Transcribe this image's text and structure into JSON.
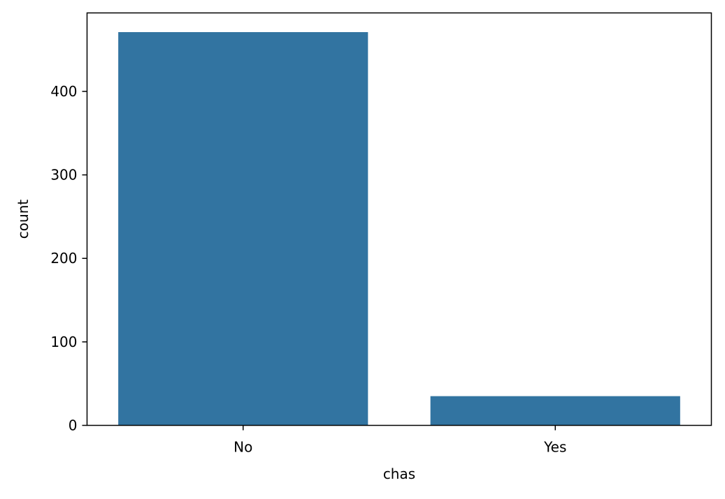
{
  "chart_data": {
    "type": "bar",
    "title": "",
    "xlabel": "chas",
    "ylabel": "count",
    "categories": [
      "No",
      "Yes"
    ],
    "values": [
      471,
      35
    ],
    "ylim": [
      0,
      494
    ],
    "yticks": [
      0,
      100,
      200,
      300,
      400
    ],
    "grid": false,
    "bar_color": "#3274a1",
    "axis_color": "#000000",
    "background": "#ffffff"
  }
}
